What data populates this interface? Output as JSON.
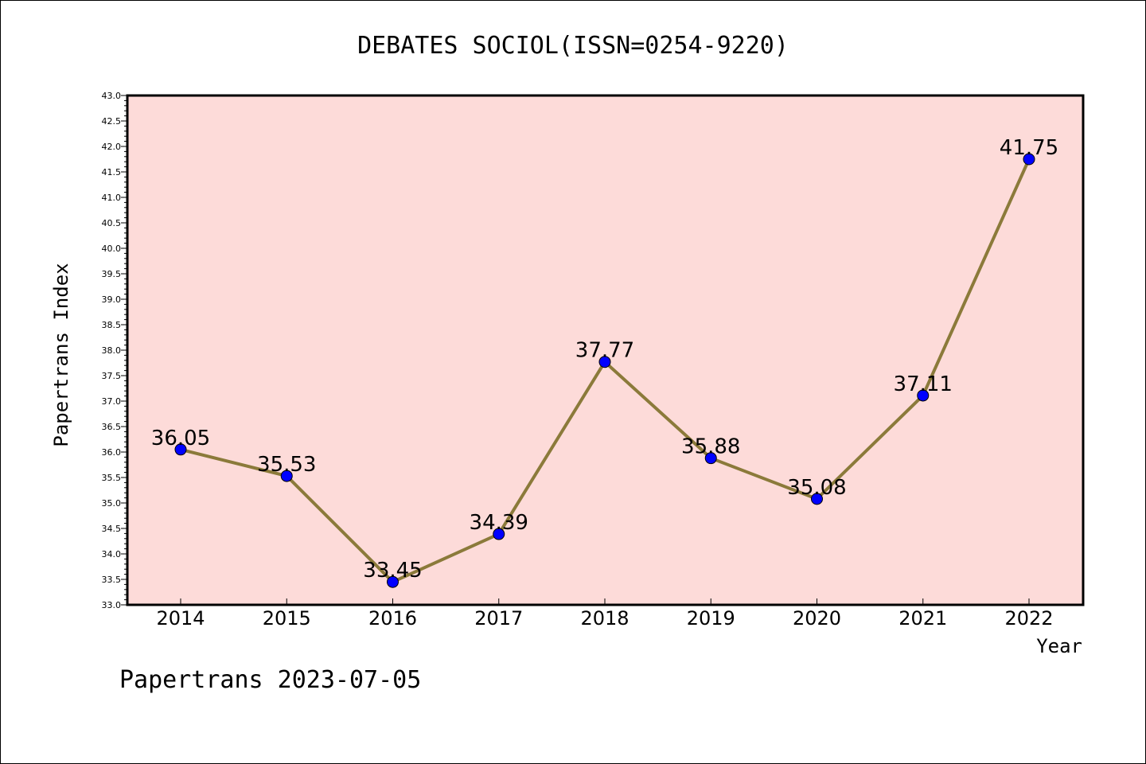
{
  "chart_data": {
    "type": "line",
    "title": "DEBATES SOCIOL(ISSN=0254-9220)",
    "xlabel": "Year",
    "ylabel": "Papertrans Index",
    "categories": [
      "2014",
      "2015",
      "2016",
      "2017",
      "2018",
      "2019",
      "2020",
      "2021",
      "2022"
    ],
    "values": [
      36.05,
      35.53,
      33.45,
      34.39,
      37.77,
      35.88,
      35.08,
      37.11,
      41.75
    ],
    "data_labels": [
      "36.05",
      "35.53",
      "33.45",
      "34.39",
      "37.77",
      "35.88",
      "35.08",
      "37.11",
      "41.75"
    ],
    "ylim": [
      33.0,
      43.0
    ],
    "ytick_labels": [
      "33.0",
      "33.5",
      "34.0",
      "34.5",
      "35.0",
      "35.5",
      "36.0",
      "36.5",
      "37.0",
      "37.5",
      "38.0",
      "38.5",
      "39.0",
      "39.5",
      "40.0",
      "40.5",
      "41.0",
      "41.5",
      "42.0",
      "42.5",
      "43.0"
    ],
    "grid": false,
    "colors": {
      "plot_background": "#FDDBD9",
      "line": "#8B7A3A",
      "marker": "#0000FF",
      "axis": "#000000"
    }
  },
  "footer": "Papertrans 2023-07-05"
}
